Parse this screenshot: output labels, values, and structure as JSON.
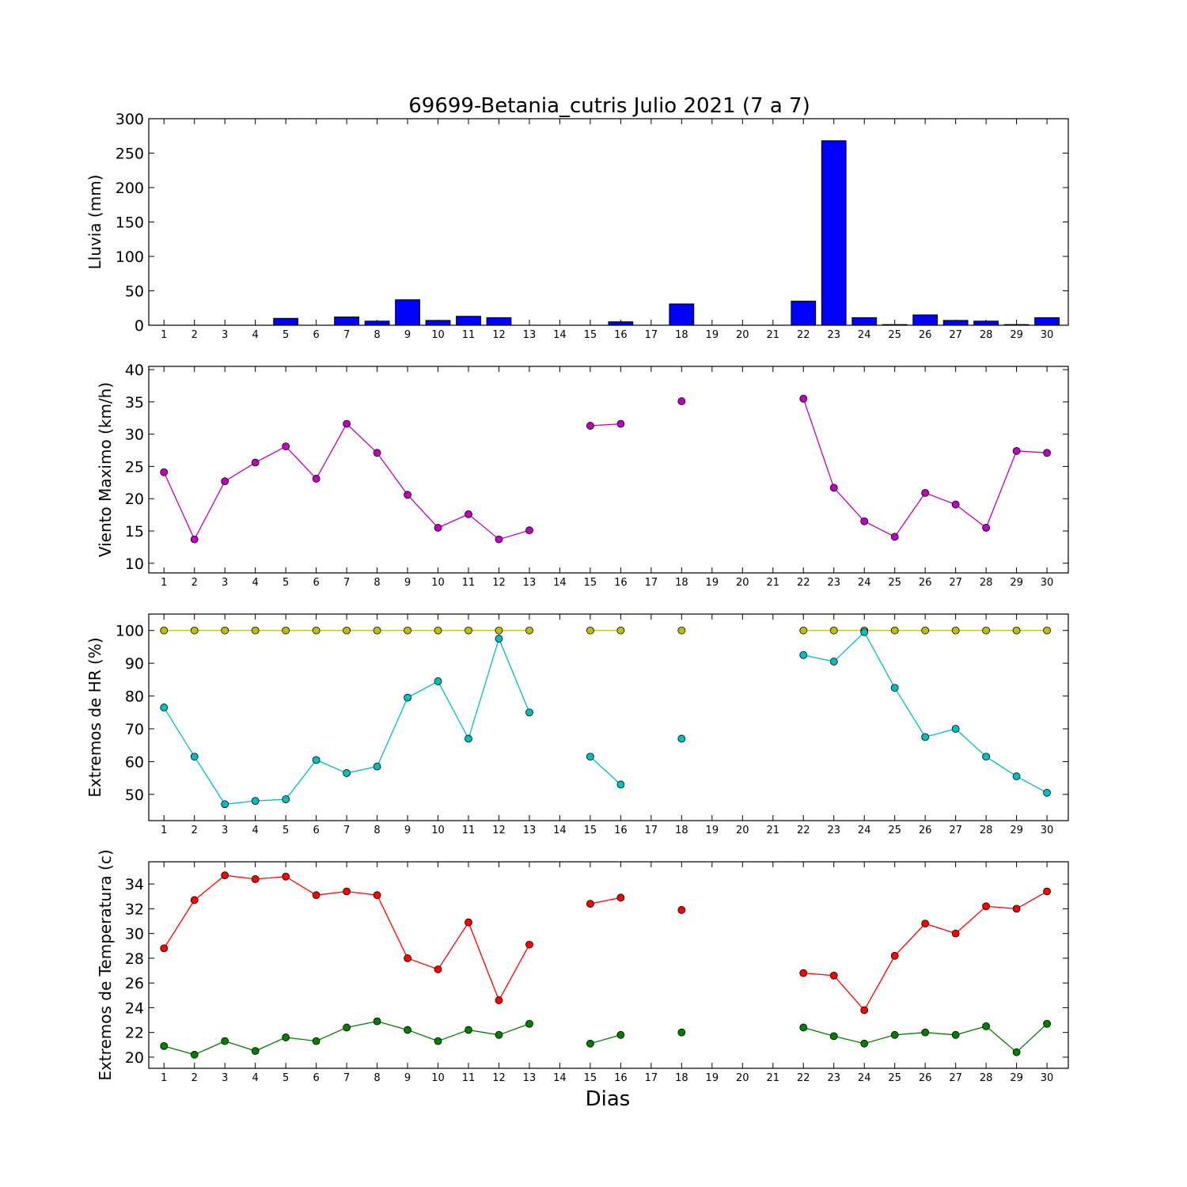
{
  "page": {
    "title": "69699-Betania_cutris Julio 2021  (7 a 7)",
    "xlabel": "Dias"
  },
  "chart_data": [
    {
      "type": "bar",
      "ylabel": "Lluvia (mm)",
      "ylim": [
        0,
        300
      ],
      "yticks": [
        0,
        50,
        100,
        150,
        200,
        250,
        300
      ],
      "categories": [
        "1",
        "2",
        "3",
        "4",
        "5",
        "6",
        "7",
        "8",
        "9",
        "10",
        "11",
        "12",
        "13",
        "14",
        "15",
        "16",
        "17",
        "18",
        "19",
        "20",
        "21",
        "22",
        "23",
        "24",
        "25",
        "26",
        "27",
        "28",
        "29",
        "30"
      ],
      "series": [
        {
          "color": "#0000ff",
          "values": [
            0,
            0,
            0,
            0,
            10,
            0,
            12,
            6,
            37,
            7,
            13,
            11,
            0,
            0,
            0,
            5,
            0,
            31,
            0,
            0,
            0,
            35,
            268,
            11,
            1,
            15,
            7,
            6,
            1,
            11
          ]
        }
      ]
    },
    {
      "type": "line",
      "ylabel": "Viento Maximo (km/h)",
      "ylim": [
        8.5,
        40.5
      ],
      "yticks": [
        10,
        15,
        20,
        25,
        30,
        35,
        40
      ],
      "categories": [
        "1",
        "2",
        "3",
        "4",
        "5",
        "6",
        "7",
        "8",
        "9",
        "10",
        "11",
        "12",
        "13",
        "14",
        "15",
        "16",
        "17",
        "18",
        "19",
        "20",
        "21",
        "22",
        "23",
        "24",
        "25",
        "26",
        "27",
        "28",
        "29",
        "30"
      ],
      "series": [
        {
          "color": "#bf00bf",
          "values": [
            24.1,
            13.7,
            22.7,
            25.6,
            28.1,
            23.1,
            31.6,
            27.1,
            20.6,
            15.5,
            17.6,
            13.7,
            15.1,
            null,
            31.3,
            31.6,
            null,
            35.1,
            null,
            null,
            null,
            35.5,
            21.7,
            16.5,
            14.1,
            20.9,
            19.1,
            15.5,
            27.4,
            27.1
          ]
        }
      ]
    },
    {
      "type": "line",
      "ylabel": "Extremos de HR (%)",
      "ylim": [
        42,
        105
      ],
      "yticks": [
        50,
        60,
        70,
        80,
        90,
        100
      ],
      "categories": [
        "1",
        "2",
        "3",
        "4",
        "5",
        "6",
        "7",
        "8",
        "9",
        "10",
        "11",
        "12",
        "13",
        "14",
        "15",
        "16",
        "17",
        "18",
        "19",
        "20",
        "21",
        "22",
        "23",
        "24",
        "25",
        "26",
        "27",
        "28",
        "29",
        "30"
      ],
      "series": [
        {
          "color": "#bfbf00",
          "values": [
            100,
            100,
            100,
            100,
            100,
            100,
            100,
            100,
            100,
            100,
            100,
            100,
            100,
            null,
            100,
            100,
            null,
            100,
            null,
            null,
            null,
            100,
            100,
            100,
            100,
            100,
            100,
            100,
            100,
            100
          ]
        },
        {
          "color": "#00bfbf",
          "values": [
            76.5,
            61.5,
            47,
            48,
            48.5,
            60.5,
            56.5,
            58.5,
            79.5,
            84.5,
            67,
            97.5,
            75,
            null,
            61.5,
            53,
            null,
            67,
            null,
            null,
            null,
            92.5,
            90.5,
            99.5,
            82.5,
            67.5,
            70,
            61.5,
            55.5,
            50.5
          ]
        }
      ]
    },
    {
      "type": "line",
      "ylabel": "Extremos de Temperatura (c)",
      "ylim": [
        19.1,
        35.8
      ],
      "yticks": [
        20,
        22,
        24,
        26,
        28,
        30,
        32,
        34
      ],
      "categories": [
        "1",
        "2",
        "3",
        "4",
        "5",
        "6",
        "7",
        "8",
        "9",
        "10",
        "11",
        "12",
        "13",
        "14",
        "15",
        "16",
        "17",
        "18",
        "19",
        "20",
        "21",
        "22",
        "23",
        "24",
        "25",
        "26",
        "27",
        "28",
        "29",
        "30"
      ],
      "series": [
        {
          "color": "#ff0000",
          "values": [
            28.8,
            32.7,
            34.7,
            34.4,
            34.6,
            33.1,
            33.4,
            33.1,
            28,
            27.1,
            30.9,
            24.6,
            29.1,
            null,
            32.4,
            32.9,
            null,
            31.9,
            null,
            null,
            null,
            26.8,
            26.6,
            23.8,
            28.2,
            30.8,
            30,
            32.2,
            32,
            33.4
          ]
        },
        {
          "color": "#007f00",
          "values": [
            20.9,
            20.2,
            21.3,
            20.5,
            21.6,
            21.3,
            22.4,
            22.9,
            22.2,
            21.3,
            22.2,
            21.8,
            22.7,
            null,
            21.1,
            21.8,
            null,
            22,
            null,
            null,
            null,
            22.4,
            21.7,
            21.1,
            21.8,
            22,
            21.8,
            22.5,
            20.4,
            22.7
          ]
        }
      ]
    }
  ]
}
